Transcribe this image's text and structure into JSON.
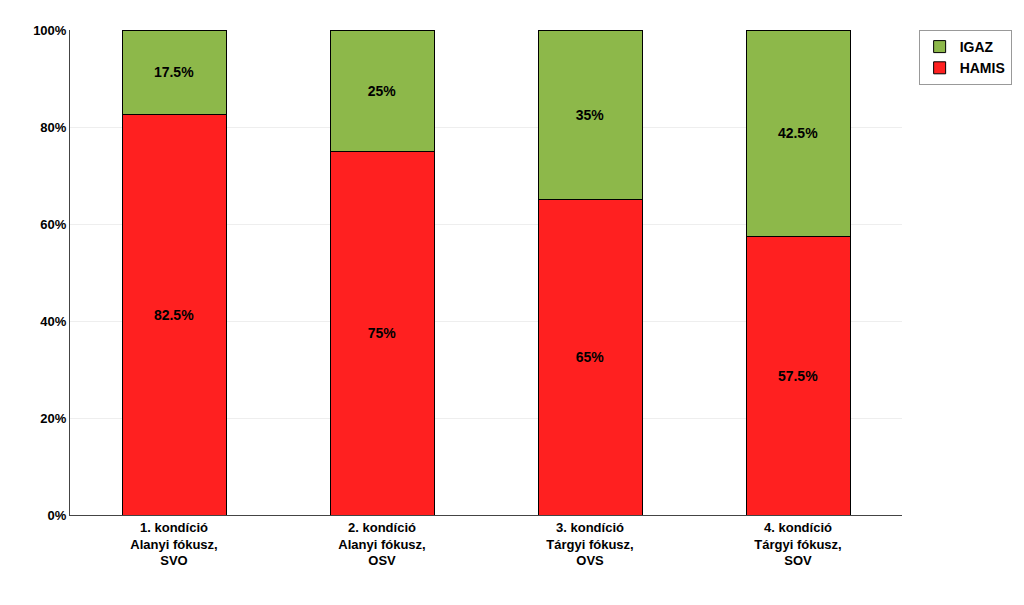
{
  "chart_data": {
    "type": "bar",
    "stacked": true,
    "categories": [
      "1. kondíció\nAlanyi fókusz,\nSVO",
      "2. kondíció\nAlanyi fókusz,\nOSV",
      "3. kondíció\nTárgyi fókusz,\nOVS",
      "4. kondíció\nTárgyi fókusz,\nSOV"
    ],
    "series": [
      {
        "name": "HAMIS",
        "color": "#FF2020",
        "values": [
          82.5,
          75.0,
          65.0,
          57.5
        ],
        "value_labels": [
          "82.5%",
          "75%",
          "65%",
          "57.5%"
        ]
      },
      {
        "name": "IGAZ",
        "color": "#8DB84A",
        "values": [
          17.5,
          25.0,
          35.0,
          42.5
        ],
        "value_labels": [
          "17.5%",
          "25%",
          "35%",
          "42.5%"
        ]
      }
    ],
    "data_labels": true,
    "ylim": [
      0,
      100
    ],
    "yticks": [
      {
        "value": 0,
        "label": "0%"
      },
      {
        "value": 20,
        "label": "20%"
      },
      {
        "value": 40,
        "label": "40%"
      },
      {
        "value": 60,
        "label": "60%"
      },
      {
        "value": 80,
        "label": "80%"
      },
      {
        "value": 100,
        "label": "100%"
      }
    ],
    "grid": true,
    "legend": "upper right"
  }
}
